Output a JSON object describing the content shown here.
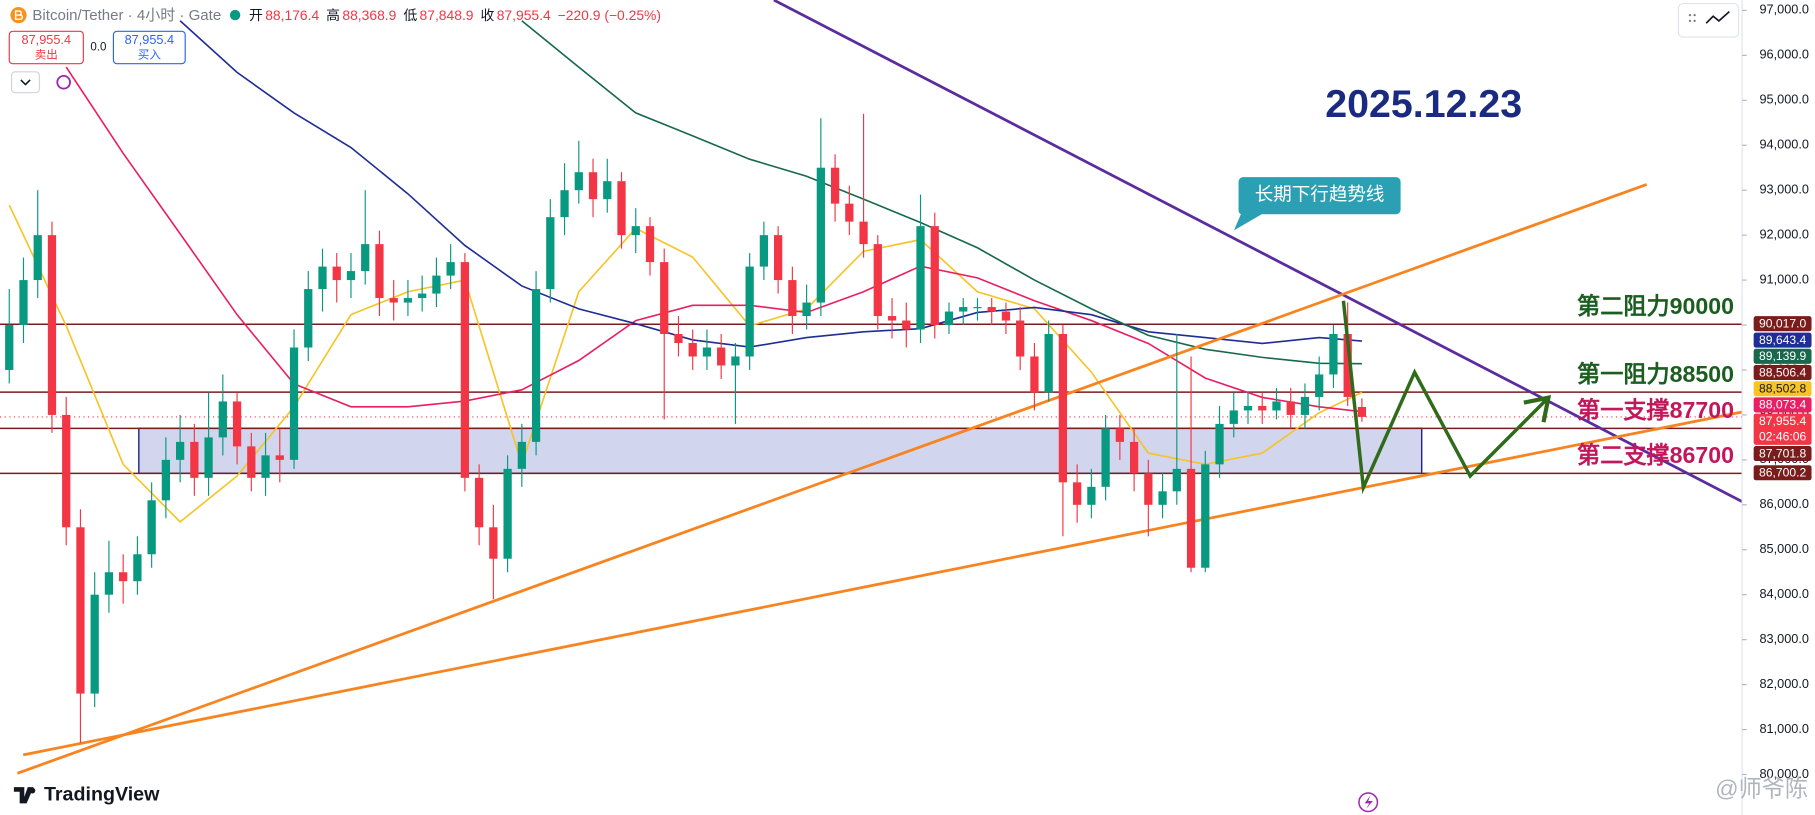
{
  "header": {
    "symbol": "Bitcoin/Tether · 4小时 · Gate",
    "ohlc": [
      {
        "label": "开",
        "value": "88,176.4"
      },
      {
        "label": "高",
        "value": "88,368.9"
      },
      {
        "label": "低",
        "value": "87,848.9"
      },
      {
        "label": "收",
        "value": "87,955.4"
      }
    ],
    "change": "−220.9 (−0.25%)",
    "sell": {
      "price": "87,955.4",
      "label": "卖出"
    },
    "spread": "0.0",
    "buy": {
      "price": "87,955.4",
      "label": "买入"
    }
  },
  "chart_data": {
    "type": "candlestick",
    "title": "2025.12.23",
    "callout": "长期下行趋势线",
    "xlim": [
      -0.65,
      121.7
    ],
    "ylim": [
      79100,
      97230
    ],
    "yticks": [
      {
        "value": 80000,
        "label": "80,000.0"
      },
      {
        "value": 81000,
        "label": "81,000.0"
      },
      {
        "value": 82000,
        "label": "82,000.0"
      },
      {
        "value": 83000,
        "label": "83,000.0"
      },
      {
        "value": 84000,
        "label": "84,000.0"
      },
      {
        "value": 85000,
        "label": "85,000.0"
      },
      {
        "value": 86000,
        "label": "86,000.0"
      },
      {
        "value": 87000,
        "label": "87,000.0"
      },
      {
        "value": 88000,
        "label": "88,000.0"
      },
      {
        "value": 89000,
        "label": "89,000.0"
      },
      {
        "value": 90000,
        "label": "90,000.0"
      },
      {
        "value": 91000,
        "label": "91,000.0"
      },
      {
        "value": 92000,
        "label": "92,000.0"
      },
      {
        "value": 93000,
        "label": "93,000.0"
      },
      {
        "value": 94000,
        "label": "94,000.0"
      },
      {
        "value": 95000,
        "label": "95,000.0"
      },
      {
        "value": 96000,
        "label": "96,000.0"
      },
      {
        "value": 97000,
        "label": "97,000.0"
      }
    ],
    "up_color": "#089981",
    "down_color": "#f23645",
    "open": [
      89000,
      90000,
      91000,
      92000,
      88000,
      85500,
      81800,
      84000,
      84500,
      84300,
      84900,
      86100,
      87000,
      87400,
      86600,
      87500,
      88300,
      87300,
      86600,
      87100,
      87000,
      89500,
      90800,
      91300,
      91000,
      91200,
      91800,
      90600,
      90500,
      90600,
      90700,
      91100,
      91400,
      86600,
      85500,
      84800,
      86800,
      87400,
      90800,
      92400,
      93000,
      93400,
      92800,
      93200,
      92000,
      92200,
      91400,
      89800,
      89600,
      89300,
      89500,
      89100,
      89300,
      91300,
      92000,
      91000,
      90200,
      90500,
      93500,
      92700,
      92300,
      91800,
      90200,
      90100,
      89900,
      92200,
      90000,
      90300,
      90400,
      90400,
      90300,
      90100,
      89300,
      88500,
      89800,
      86500,
      86000,
      86400,
      87700,
      87400,
      86700,
      86000,
      86300,
      86800,
      84600,
      86900,
      87800,
      88100,
      88200,
      88100,
      88300,
      88000,
      88400,
      88900,
      89800,
      88176.4
    ],
    "high": [
      90800,
      91500,
      93000,
      92300,
      88400,
      85900,
      84500,
      85200,
      84900,
      85300,
      86500,
      87500,
      88000,
      87800,
      88500,
      88900,
      88500,
      87600,
      87600,
      87700,
      89900,
      91200,
      91700,
      91600,
      91600,
      93000,
      92100,
      91000,
      91000,
      91100,
      91500,
      91800,
      91600,
      86900,
      86000,
      87100,
      87800,
      91200,
      92800,
      93600,
      94100,
      93700,
      93700,
      93400,
      92600,
      92400,
      91700,
      90200,
      89900,
      89900,
      89800,
      89600,
      91600,
      92300,
      92200,
      91300,
      90900,
      94600,
      93800,
      93100,
      94700,
      92000,
      90600,
      90500,
      92900,
      92500,
      90500,
      90600,
      90600,
      90600,
      90500,
      90400,
      89600,
      90100,
      90000,
      86900,
      86800,
      88000,
      88000,
      87700,
      87000,
      86700,
      89800,
      89300,
      87200,
      88200,
      88500,
      88500,
      88500,
      88600,
      88600,
      88700,
      89300,
      90000,
      90500,
      88368.9
    ],
    "low": [
      88700,
      89600,
      90600,
      87600,
      85100,
      80700,
      81500,
      83600,
      83800,
      84000,
      84600,
      85700,
      86500,
      86200,
      86200,
      87100,
      86900,
      86300,
      86200,
      86500,
      86800,
      89200,
      90300,
      90500,
      90600,
      90900,
      90200,
      90100,
      90200,
      90300,
      90400,
      90800,
      86300,
      85100,
      83900,
      84500,
      86400,
      87100,
      90500,
      92000,
      92700,
      92400,
      92500,
      91700,
      91600,
      91100,
      87900,
      89300,
      89000,
      89000,
      88800,
      87800,
      89000,
      91000,
      90700,
      89800,
      89900,
      90200,
      92300,
      92000,
      91500,
      89900,
      89700,
      89500,
      89600,
      89700,
      89800,
      90000,
      90100,
      90000,
      89800,
      89000,
      88100,
      88300,
      85300,
      85600,
      85700,
      86100,
      87000,
      86300,
      85300,
      85700,
      86000,
      84500,
      84500,
      86600,
      87500,
      87800,
      87800,
      87900,
      87700,
      87700,
      88100,
      88600,
      88200,
      87848.9
    ],
    "close": [
      90000,
      91000,
      92000,
      88000,
      85500,
      81800,
      84000,
      84500,
      84300,
      84900,
      86100,
      87000,
      87400,
      86600,
      87500,
      88300,
      87300,
      86600,
      87100,
      87000,
      89500,
      90800,
      91300,
      91000,
      91200,
      91800,
      90600,
      90500,
      90600,
      90700,
      91100,
      91400,
      86600,
      85500,
      84800,
      86800,
      87400,
      90800,
      92400,
      93000,
      93400,
      92800,
      93200,
      92000,
      92200,
      91400,
      89800,
      89600,
      89300,
      89500,
      89100,
      89300,
      91300,
      92000,
      91000,
      90200,
      90500,
      93500,
      92700,
      92300,
      91800,
      90200,
      90100,
      89900,
      92200,
      90000,
      90300,
      90400,
      90400,
      90300,
      90100,
      89300,
      88500,
      89800,
      86500,
      86000,
      86400,
      87700,
      87400,
      86700,
      86000,
      86300,
      86800,
      84600,
      86900,
      87800,
      88100,
      88200,
      88100,
      88300,
      88000,
      88400,
      88900,
      89800,
      88400,
      87955.4
    ],
    "last_price_label": "87,955.4",
    "countdown": "02:46:06",
    "ma_x": [
      0,
      4,
      8,
      12,
      16,
      20,
      24,
      28,
      32,
      36,
      40,
      44,
      48,
      52,
      56,
      60,
      64,
      68,
      72,
      76,
      80,
      84,
      88,
      92,
      95
    ],
    "series": [
      {
        "color": "#f7c325",
        "text_color": "#131722",
        "values": [
          92670,
          89980,
          86900,
          85620,
          86640,
          88180,
          90230,
          90740,
          91000,
          86900,
          90740,
          92150,
          91510,
          89980,
          90360,
          91640,
          91900,
          90740,
          90360,
          88950,
          87150,
          86900,
          87150,
          88050,
          88502.8
        ],
        "value_labels": [
          null,
          null,
          null,
          null,
          null,
          null,
          null,
          null,
          null,
          null,
          null,
          null,
          null,
          null,
          null,
          null,
          null,
          null,
          null,
          null,
          null,
          null,
          null,
          null,
          "88,502.8"
        ]
      },
      {
        "color": "#e91e63",
        "text_color": "#ffffff",
        "values": [
          null,
          95740,
          93820,
          92030,
          90230,
          88690,
          88180,
          88180,
          88310,
          88560,
          89210,
          90100,
          90440,
          90440,
          90280,
          90740,
          91310,
          91050,
          90540,
          90100,
          89590,
          88820,
          88390,
          88180,
          88073.4
        ],
        "value_labels": [
          null,
          null,
          null,
          null,
          null,
          null,
          null,
          null,
          null,
          null,
          null,
          null,
          null,
          null,
          null,
          null,
          null,
          null,
          null,
          null,
          null,
          null,
          null,
          null,
          "88,073.4"
        ]
      },
      {
        "color": "#1f2d96",
        "text_color": "#ffffff",
        "values": [
          null,
          null,
          null,
          96770,
          95620,
          94720,
          93950,
          92920,
          91770,
          90870,
          90360,
          90030,
          89670,
          89510,
          89720,
          89850,
          89920,
          90280,
          90390,
          90230,
          89850,
          89720,
          89590,
          89720,
          89643.4
        ],
        "value_labels": [
          null,
          null,
          null,
          null,
          null,
          null,
          null,
          null,
          null,
          null,
          null,
          null,
          null,
          null,
          null,
          null,
          null,
          null,
          null,
          null,
          null,
          null,
          null,
          null,
          "89,643.4"
        ]
      },
      {
        "color": "#16694a",
        "text_color": "#ffffff",
        "values": [
          null,
          null,
          null,
          null,
          null,
          null,
          null,
          null,
          null,
          96770,
          95740,
          94720,
          94210,
          93690,
          93310,
          92800,
          92280,
          91720,
          91000,
          90360,
          89770,
          89460,
          89280,
          89150,
          89139.9
        ],
        "value_labels": [
          null,
          null,
          null,
          null,
          null,
          null,
          null,
          null,
          null,
          null,
          null,
          null,
          null,
          null,
          null,
          null,
          null,
          null,
          null,
          null,
          null,
          null,
          null,
          null,
          "89,139.9"
        ]
      }
    ],
    "levels": [
      {
        "value": 90017,
        "label": "90,017.0",
        "color": "#7b1c1c",
        "note": "第二阻力90000",
        "note_color": "#1b5e20"
      },
      {
        "value": 88506.4,
        "label": "88,506.4",
        "color": "#7b1c1c",
        "note": "第一阻力88500",
        "note_color": "#1b5e20"
      },
      {
        "value": 87701.8,
        "label": "87,701.8",
        "color": "#7b1c1c",
        "note": "第一支撑87700",
        "note_color": "#c2185b"
      },
      {
        "value": 86700.2,
        "label": "86,700.2",
        "color": "#7b1c1c",
        "note": "第二支撑86700",
        "note_color": "#c2185b"
      }
    ],
    "zone": {
      "x": [
        9.1,
        99.2
      ],
      "y": [
        87701.8,
        86700.2
      ],
      "fill": "#c5cae9",
      "stroke": "#1a237e"
    },
    "trendlines": [
      {
        "color": "#5b2c9e",
        "x": [
          53.7,
          122.3
        ],
        "y": [
          97230,
          85974
        ]
      },
      {
        "color": "#f7841f",
        "x": [
          0.57,
          115
        ],
        "y": [
          80026,
          93128
        ]
      },
      {
        "color": "#f7841f",
        "x": [
          0.98,
          122.3
        ],
        "y": [
          80436,
          88103
        ]
      }
    ],
    "projection": {
      "color": "#2f6b1a",
      "x": [
        93.7,
        95.1,
        98.7,
        102.6,
        108.1
      ],
      "y": [
        90539,
        86385,
        88949,
        86641,
        88385
      ]
    }
  },
  "branding": {
    "logo": "TradingView",
    "watermark": "@师爷陈"
  }
}
